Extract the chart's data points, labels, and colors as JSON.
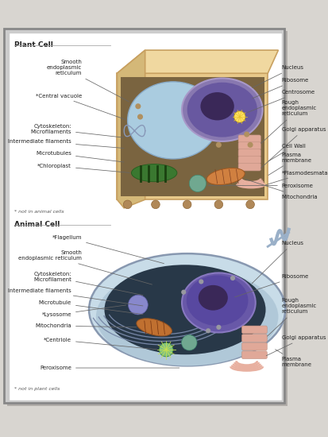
{
  "bg_outer": "#d8d5d0",
  "bg_inner": "#ffffff",
  "title_plant": "Plant Cell",
  "title_animal": "Animal Cell",
  "footnote_plant": "* not in animal cells",
  "footnote_animal": "* not in plant cells",
  "label_fs": 5.0,
  "title_fs": 6.5,
  "colors": {
    "plant_wall_front": "#e8c98a",
    "plant_wall_top": "#f0d8a0",
    "plant_wall_left": "#d4b878",
    "plant_wall_edge": "#c8a060",
    "plant_cytoplasm": "#7a6440",
    "vacuole": "#aacce0",
    "vacuole_edge": "#88aac8",
    "nucleus_outer": "#8878b0",
    "nucleus_mid": "#6858a0",
    "nucleolus": "#3a2858",
    "er_rough": "#e0a898",
    "golgi": "#e8b0a0",
    "centrosome": "#ffe060",
    "mito_orange": "#d08040",
    "chloro_green": "#3a7830",
    "chloro_light": "#4a9840",
    "perox_teal": "#70a890",
    "ribosome": "#b09060",
    "dot_brown": "#b08858",
    "animal_outer": "#b8ccd8",
    "animal_outer_edge": "#8898b0",
    "animal_cytoplasm": "#283848",
    "animal_nuc": "#6858a8",
    "animal_nuc_edge": "#8878c0",
    "animal_nucleolus": "#3a2858",
    "animal_er": "#8898b8",
    "flagellum": "#9ab0c8",
    "lysosome": "#8888cc",
    "animal_mito": "#c07030",
    "centriole_y": "#c8e050",
    "centriole_g": "#80c080"
  }
}
